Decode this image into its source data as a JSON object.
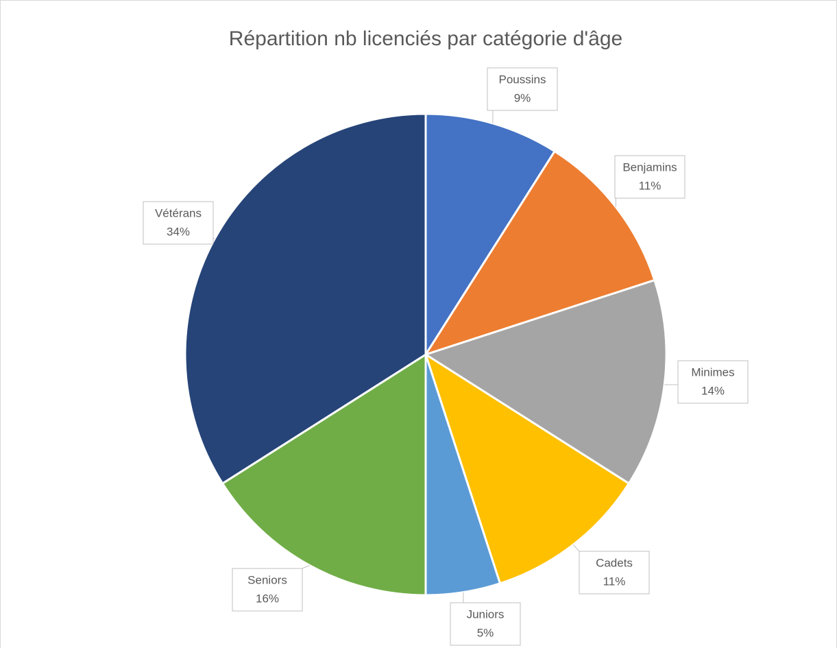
{
  "chart_data": {
    "type": "pie",
    "title": "Répartition nb licenciés par catégorie d'âge",
    "categories": [
      "Poussins",
      "Benjamins",
      "Minimes",
      "Cadets",
      "Juniors",
      "Seniors",
      "Vétérans"
    ],
    "values": [
      9,
      11,
      14,
      11,
      5,
      16,
      34
    ],
    "value_labels": [
      "9%",
      "11%",
      "14%",
      "11%",
      "5%",
      "16%",
      "34%"
    ],
    "colors": [
      "#4472c4",
      "#ed7d31",
      "#a5a5a5",
      "#ffc000",
      "#5b9bd5",
      "#70ad47",
      "#264478"
    ]
  }
}
